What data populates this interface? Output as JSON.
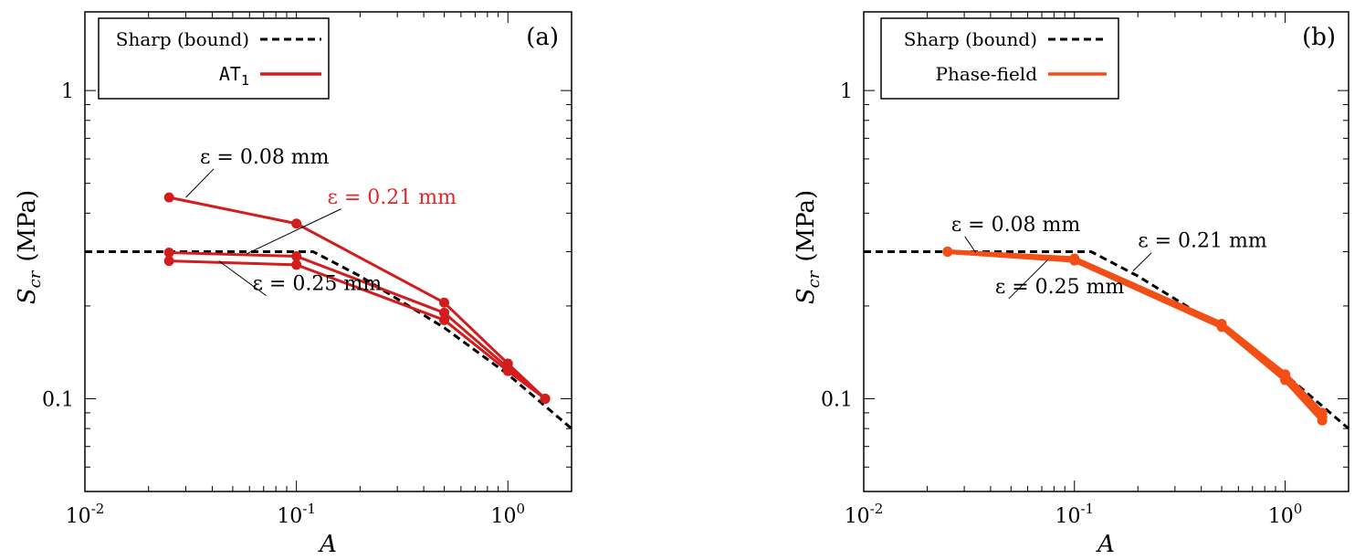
{
  "colors": {
    "sharp": "#000000",
    "at1": "#d31c1c",
    "phasefield": "#f24f17",
    "annot_red": "#e3262a",
    "text": "#000000"
  },
  "chart_data": [
    {
      "type": "line",
      "panel_label": "(a)",
      "xlabel": "A",
      "ylabel_main": "S",
      "ylabel_sub": "cr",
      "ylabel_unit": "(MPa)",
      "xscale": "log",
      "yscale": "log",
      "xlim": [
        0.01,
        2.0
      ],
      "ylim": [
        0.05,
        1.8
      ],
      "xticks": [
        {
          "value": 0.01,
          "base": "10",
          "exp": "-2"
        },
        {
          "value": 0.1,
          "base": "10",
          "exp": "-1"
        },
        {
          "value": 1.0,
          "base": "10",
          "exp": "0"
        }
      ],
      "yticks": [
        {
          "value": 0.1,
          "label": "0.1"
        },
        {
          "value": 1.0,
          "label": "1"
        }
      ],
      "legend": [
        {
          "label": "Sharp (bound)",
          "style": "dashed",
          "colorKey": "sharp"
        },
        {
          "label_main": "AT",
          "label_sub": "1",
          "style": "solid",
          "colorKey": "at1"
        }
      ],
      "sharp_bound": {
        "name": "Sharp (bound)",
        "x": [
          0.01,
          0.12,
          0.2,
          0.5,
          1.0,
          2.0
        ],
        "y": [
          0.3,
          0.3,
          0.25,
          0.17,
          0.12,
          0.08
        ]
      },
      "series": [
        {
          "name": "ε = 0.08 mm",
          "x": [
            0.025,
            0.1,
            0.5,
            1.0,
            1.5
          ],
          "y": [
            0.45,
            0.37,
            0.205,
            0.13,
            0.1
          ],
          "colorKey": "at1",
          "markers": true
        },
        {
          "name": "ε = 0.21 mm",
          "x": [
            0.025,
            0.1,
            0.5,
            1.0,
            1.5
          ],
          "y": [
            0.298,
            0.29,
            0.19,
            0.126,
            0.1
          ],
          "colorKey": "at1",
          "markers": true
        },
        {
          "name": "ε = 0.25 mm",
          "x": [
            0.025,
            0.1,
            0.5,
            1.0,
            1.5
          ],
          "y": [
            0.28,
            0.272,
            0.18,
            0.123,
            0.1
          ],
          "colorKey": "at1",
          "markers": true
        }
      ],
      "annotations": [
        {
          "text": "ε = 0.08 mm",
          "colorKey": "text",
          "tx": 0.035,
          "ty": 0.58,
          "ax": 0.03,
          "ay": 0.45
        },
        {
          "text": "ε = 0.21 mm",
          "colorKey": "annot_red",
          "tx": 0.14,
          "ty": 0.43,
          "ax": 0.058,
          "ay": 0.295
        },
        {
          "text": "ε = 0.25 mm",
          "colorKey": "text",
          "tx": 0.062,
          "ty": 0.225,
          "ax": 0.043,
          "ay": 0.28
        }
      ]
    },
    {
      "type": "line",
      "panel_label": "(b)",
      "xlabel": "A",
      "ylabel_main": "S",
      "ylabel_sub": "cr",
      "ylabel_unit": "(MPa)",
      "xscale": "log",
      "yscale": "log",
      "xlim": [
        0.01,
        2.0
      ],
      "ylim": [
        0.05,
        1.8
      ],
      "xticks": [
        {
          "value": 0.01,
          "base": "10",
          "exp": "-2"
        },
        {
          "value": 0.1,
          "base": "10",
          "exp": "-1"
        },
        {
          "value": 1.0,
          "base": "10",
          "exp": "0"
        }
      ],
      "yticks": [
        {
          "value": 0.1,
          "label": "0.1"
        },
        {
          "value": 1.0,
          "label": "1"
        }
      ],
      "legend": [
        {
          "label": "Sharp (bound)",
          "style": "dashed",
          "colorKey": "sharp"
        },
        {
          "label": "Phase-field",
          "style": "solid",
          "colorKey": "phasefield"
        }
      ],
      "sharp_bound": {
        "name": "Sharp (bound)",
        "x": [
          0.01,
          0.12,
          0.2,
          0.5,
          1.0,
          2.0
        ],
        "y": [
          0.3,
          0.3,
          0.25,
          0.17,
          0.12,
          0.08
        ]
      },
      "series": [
        {
          "name": "ε = 0.08 mm",
          "x": [
            0.025,
            0.1,
            0.5,
            1.0,
            1.5
          ],
          "y": [
            0.3,
            0.285,
            0.175,
            0.12,
            0.09
          ],
          "colorKey": "phasefield",
          "markers": true
        },
        {
          "name": "ε = 0.21 mm",
          "x": [
            0.025,
            0.1,
            0.5,
            1.0,
            1.5
          ],
          "y": [
            0.3,
            0.283,
            0.173,
            0.117,
            0.087
          ],
          "colorKey": "phasefield",
          "markers": true
        },
        {
          "name": "ε = 0.25 mm",
          "x": [
            0.025,
            0.1,
            0.5,
            1.0,
            1.5
          ],
          "y": [
            0.3,
            0.281,
            0.171,
            0.115,
            0.085
          ],
          "colorKey": "phasefield",
          "markers": true
        }
      ],
      "annotations": [
        {
          "text": "ε = 0.08 mm",
          "colorKey": "text",
          "tx": 0.026,
          "ty": 0.35,
          "ax": 0.034,
          "ay": 0.298
        },
        {
          "text": "ε = 0.21 mm",
          "colorKey": "text",
          "tx": 0.2,
          "ty": 0.31,
          "ax": 0.19,
          "ay": 0.26
        },
        {
          "text": "ε = 0.25 mm",
          "colorKey": "text",
          "tx": 0.042,
          "ty": 0.22,
          "ax": 0.075,
          "ay": 0.283
        }
      ]
    }
  ]
}
